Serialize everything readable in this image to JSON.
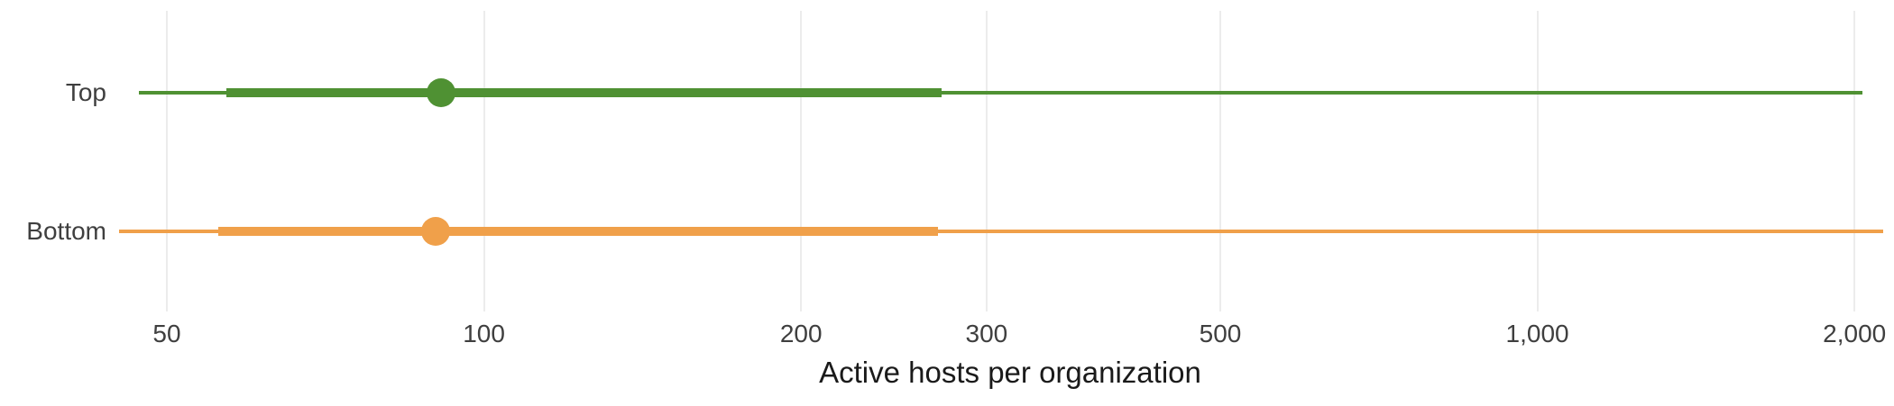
{
  "chart_data": {
    "type": "dot-interval",
    "title": "",
    "xlabel": "Active hosts per organization",
    "ylabel": "",
    "x_axis": {
      "scale": "log",
      "ticks": [
        {
          "value": 50,
          "label": "50"
        },
        {
          "value": 100,
          "label": "100"
        },
        {
          "value": 200,
          "label": "200"
        },
        {
          "value": 300,
          "label": "300"
        },
        {
          "value": 500,
          "label": "500"
        },
        {
          "value": 1000,
          "label": "1,000"
        },
        {
          "value": 2000,
          "label": "2,000"
        }
      ],
      "xlim": [
        42,
        2200
      ],
      "grid": true
    },
    "categories": [
      "Top",
      "Bottom"
    ],
    "series": [
      {
        "name": "Top",
        "color": "#4f9133",
        "range_min": 47,
        "q1": 57,
        "median": 91,
        "q3": 272,
        "range_max": 2035
      },
      {
        "name": "Bottom",
        "color": "#f0a04a",
        "range_min": 45,
        "q1": 56,
        "median": 90,
        "q3": 270,
        "range_max": 2130
      }
    ],
    "legend": "none",
    "marks_note": "thin line = full range, thick bar = interquartile-style inner range, dot = median"
  },
  "colors": {
    "background": "#ffffff",
    "gridline": "#ececec",
    "tick_text": "#3f3f3f",
    "row_label_text": "#3f3f3f",
    "axis_title_text": "#1a1a1a",
    "series_top": "#4f9133",
    "series_bottom": "#f0a04a"
  }
}
